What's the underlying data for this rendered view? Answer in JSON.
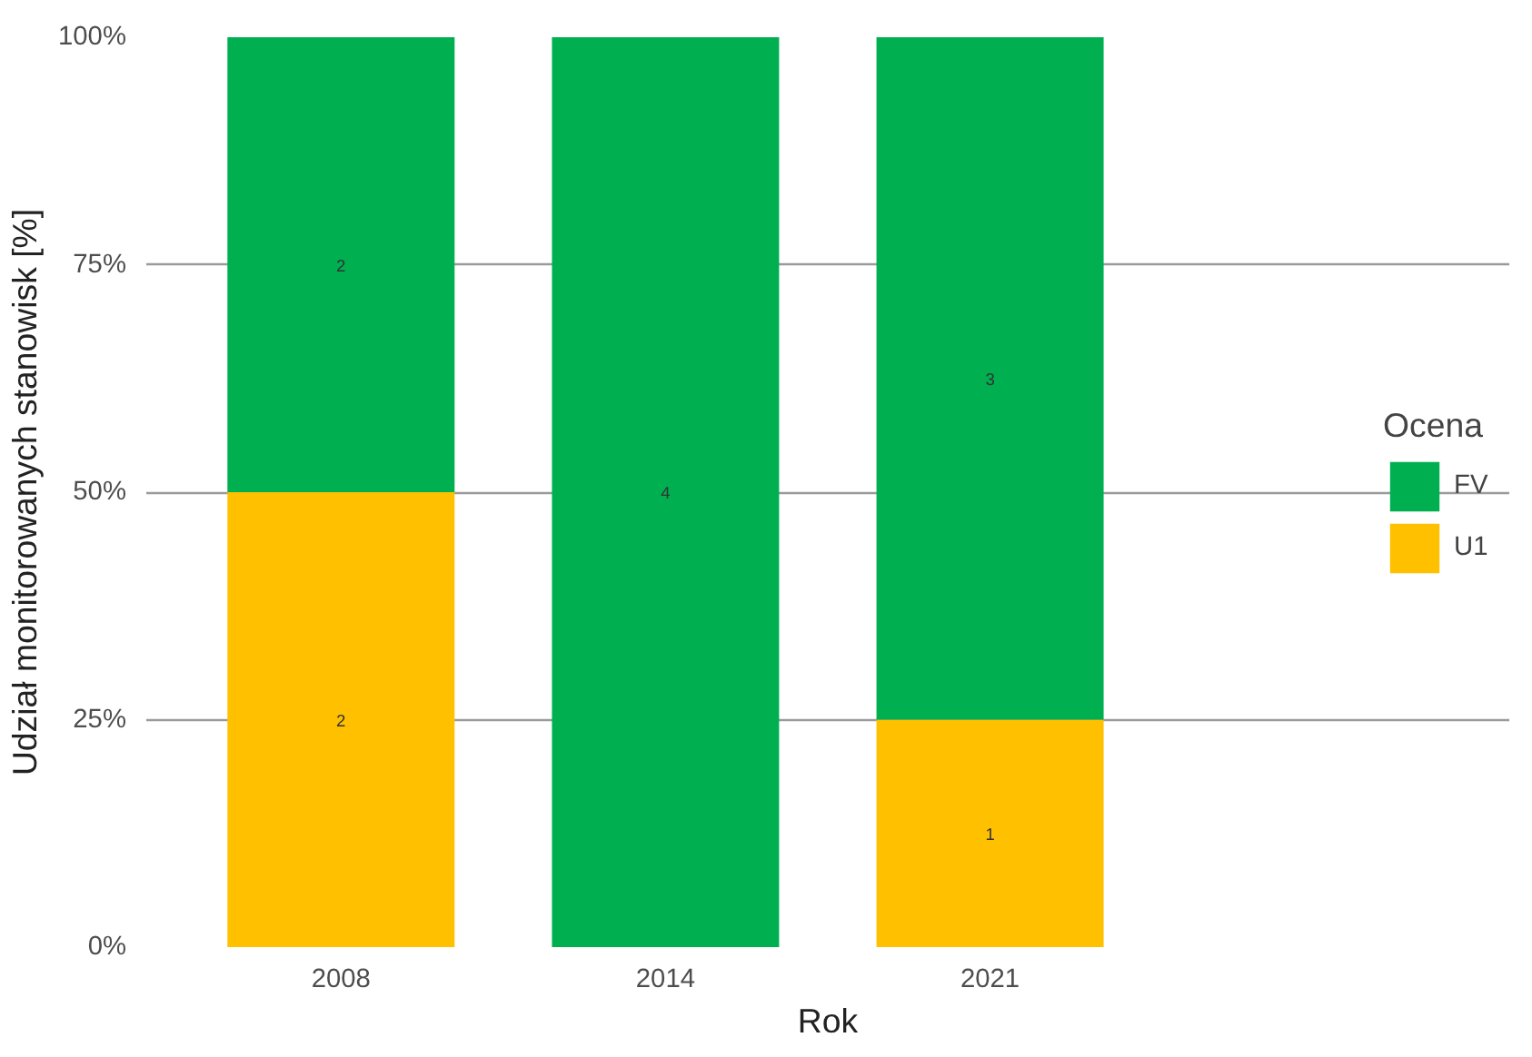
{
  "chart_data": {
    "type": "bar",
    "stacked": true,
    "xlabel": "Rok",
    "ylabel": "Udział monitorowanych stanowisk [%]",
    "legend_title": "Ocena",
    "categories": [
      "2008",
      "2014",
      "2021"
    ],
    "series": [
      {
        "name": "U1",
        "color": "#ffc000",
        "values": [
          50,
          null,
          25
        ]
      },
      {
        "name": "FV",
        "color": "#00b050",
        "values": [
          50,
          100,
          75
        ]
      }
    ],
    "annotations": [
      "2",
      "1",
      "2",
      "4",
      "3"
    ],
    "ylim": [
      0,
      100
    ],
    "yticks": [
      {
        "value": 0,
        "label": "0%"
      },
      {
        "value": 25,
        "label": "25%"
      },
      {
        "value": 50,
        "label": "50%"
      },
      {
        "value": 75,
        "label": "75%"
      },
      {
        "value": 100,
        "label": "100%"
      }
    ],
    "grid": "y",
    "legend": "right"
  }
}
